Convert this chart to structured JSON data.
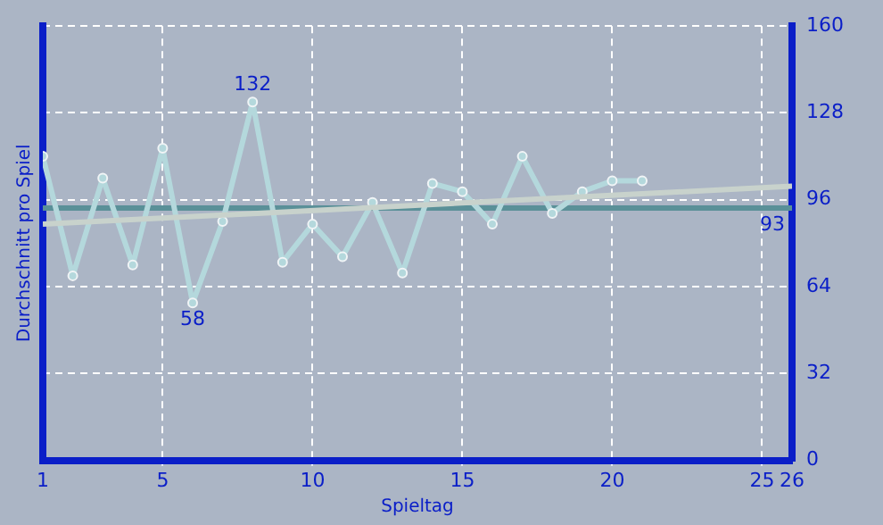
{
  "chart_data": {
    "type": "line",
    "xlabel": "Spieltag",
    "ylabel": "Durchschnitt pro Spiel",
    "x": [
      1,
      2,
      3,
      4,
      5,
      6,
      7,
      8,
      9,
      10,
      11,
      12,
      13,
      14,
      15,
      16,
      17,
      18,
      19,
      20,
      21
    ],
    "series": [
      {
        "color": "#b4d8dc",
        "marker": "circle",
        "values": [
          112,
          68,
          104,
          72,
          115,
          58,
          88,
          132,
          73,
          87,
          75,
          95,
          69,
          102,
          99,
          87,
          112,
          91,
          99,
          103,
          103
        ],
        "value_labels": [
          null,
          null,
          null,
          null,
          null,
          "58",
          null,
          "132",
          null,
          null,
          null,
          null,
          null,
          null,
          null,
          null,
          null,
          null,
          null,
          null,
          null
        ]
      },
      {
        "color": "#c8d2cc",
        "marker": "none",
        "x": [
          1,
          26
        ],
        "values": [
          87,
          101
        ]
      }
    ],
    "ref_lines": [
      {
        "axis": "y",
        "value": 93,
        "label": "93",
        "color": "#5a9098"
      }
    ],
    "xlim": [
      1,
      26
    ],
    "xticks": [
      1,
      5,
      10,
      15,
      20,
      25,
      26
    ],
    "ylim": [
      0,
      160
    ],
    "yticks": [
      0,
      32,
      64,
      96,
      128,
      160
    ],
    "grid": true,
    "legend": false,
    "tick_labels": "xy"
  }
}
